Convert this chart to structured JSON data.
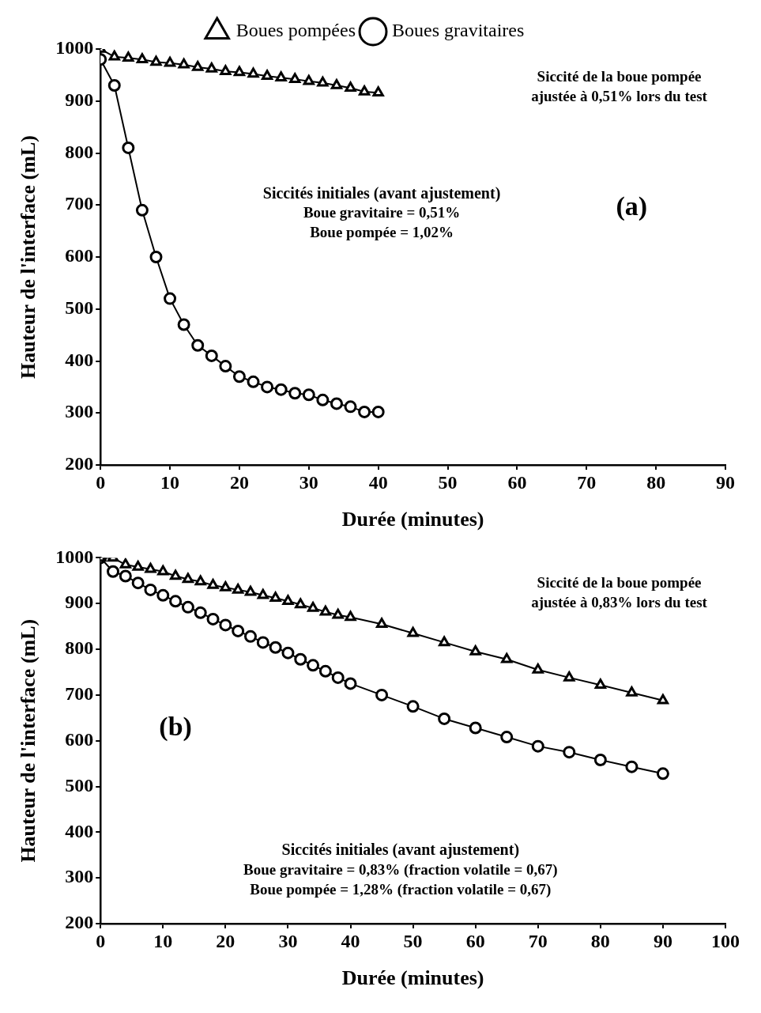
{
  "chart_data": [
    {
      "type": "line",
      "xlabel": "Durée (minutes)",
      "ylabel": "Hauteur de l'interface (mL)",
      "legend": "top",
      "grid": false,
      "line_style": "solid",
      "xlim": [
        0,
        90
      ],
      "xticks": [
        0,
        10,
        20,
        30,
        40,
        50,
        60,
        70,
        80,
        90
      ],
      "ylim": [
        200,
        1000
      ],
      "yticks": [
        200,
        300,
        400,
        500,
        600,
        700,
        800,
        900,
        1000
      ],
      "annotations": [
        "Siccité de la boue pompée\najustée à 0,51% lors du test",
        "Siccités initiales (avant ajustement)\nBoue gravitaire = 0,51%\nBoue pompée = 1,02%",
        "(a)"
      ],
      "series": [
        {
          "name": "Boues gravitaires",
          "color": "#000000",
          "marker": "circle",
          "x": [
            0,
            2,
            4,
            6,
            8,
            10,
            12,
            14,
            16,
            18,
            20,
            22,
            24,
            26,
            28,
            30,
            32,
            34,
            36,
            38,
            40
          ],
          "values": [
            980,
            930,
            810,
            690,
            600,
            520,
            470,
            430,
            410,
            390,
            370,
            360,
            350,
            345,
            338,
            335,
            325,
            318,
            312,
            302,
            302
          ]
        },
        {
          "name": "Boues pompées",
          "color": "#000000",
          "marker": "triangle",
          "x": [
            0,
            2,
            4,
            6,
            8,
            10,
            12,
            14,
            16,
            18,
            20,
            22,
            24,
            26,
            28,
            30,
            32,
            34,
            36,
            38,
            40
          ],
          "values": [
            1000,
            985,
            983,
            980,
            975,
            973,
            970,
            965,
            962,
            957,
            955,
            952,
            948,
            945,
            942,
            938,
            935,
            930,
            925,
            918,
            916
          ]
        }
      ]
    },
    {
      "type": "line",
      "xlabel": "Durée (minutes)",
      "ylabel": "Hauteur de l'interface (mL)",
      "legend": false,
      "grid": false,
      "line_style": "solid",
      "xlim": [
        0,
        100
      ],
      "xticks": [
        0,
        10,
        20,
        30,
        40,
        50,
        60,
        70,
        80,
        90,
        100
      ],
      "ylim": [
        200,
        1000
      ],
      "yticks": [
        200,
        300,
        400,
        500,
        600,
        700,
        800,
        900,
        1000
      ],
      "annotations": [
        "Siccité de la boue pompée\najustée à 0,83% lors du test",
        "(b)",
        "Siccités initiales (avant ajustement)\nBoue gravitaire = 0,83% (fraction volatile = 0,67)\nBoue pompée = 1,28% (fraction volatile = 0,67)"
      ],
      "series": [
        {
          "color": "#000000",
          "marker": "circle",
          "x": [
            0,
            2,
            4,
            6,
            8,
            10,
            12,
            14,
            16,
            18,
            20,
            22,
            24,
            26,
            28,
            30,
            32,
            34,
            36,
            38,
            40,
            45,
            50,
            55,
            60,
            65,
            70,
            75,
            80,
            85,
            90
          ],
          "values": [
            1000,
            970,
            960,
            945,
            930,
            918,
            905,
            892,
            880,
            866,
            853,
            840,
            828,
            815,
            804,
            792,
            778,
            765,
            752,
            738,
            725,
            700,
            675,
            648,
            628,
            608,
            588,
            575,
            558,
            543,
            528
          ]
        },
        {
          "color": "#000000",
          "marker": "triangle",
          "x": [
            0,
            2,
            4,
            6,
            8,
            10,
            12,
            14,
            16,
            18,
            20,
            22,
            24,
            26,
            28,
            30,
            32,
            34,
            36,
            38,
            40,
            45,
            50,
            55,
            60,
            65,
            70,
            75,
            80,
            85,
            90
          ],
          "values": [
            1000,
            1000,
            985,
            980,
            975,
            970,
            960,
            953,
            948,
            940,
            935,
            930,
            925,
            918,
            912,
            905,
            898,
            890,
            882,
            875,
            870,
            855,
            835,
            815,
            795,
            778,
            755,
            738,
            722,
            705,
            688
          ]
        }
      ]
    }
  ]
}
